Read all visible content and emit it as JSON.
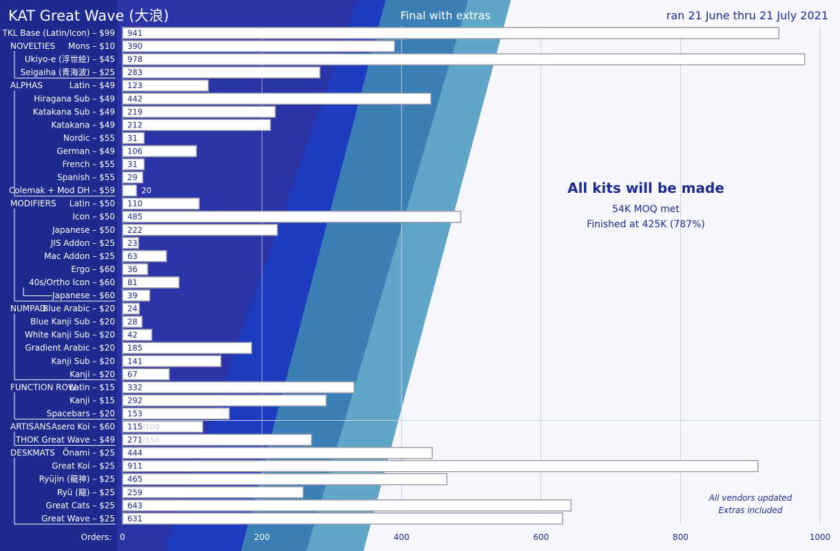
{
  "header": {
    "title": "KAT Great Wave (大浪)",
    "subtitle": "Final with extras",
    "date_range": "ran 21 June thru 21 July 2021"
  },
  "annotation": {
    "headline": "All kits will be made",
    "line1": "54K MOQ met",
    "line2": "Finished at 425K (787%)"
  },
  "footnote": {
    "line1": "All vendors updated",
    "line2": "Extras included"
  },
  "axis": {
    "label": "Orders:"
  },
  "colors": {
    "bg_dark": "#1f2a8f",
    "band1": "#2a34a6",
    "band2": "#1e3cc0",
    "band3": "#3a80b6",
    "band4": "#5fa6c8",
    "light_bg": "#f7f8fd",
    "bar_fill": "#ffffff",
    "bar_stroke": "#9a9cab",
    "text_dark": "#1c2a8f"
  },
  "chart_data": {
    "type": "bar",
    "orientation": "horizontal",
    "xlim": [
      0,
      1000
    ],
    "ticks": [
      0,
      200,
      400,
      600,
      800,
      1000
    ],
    "grid": true,
    "rows": [
      {
        "group": "",
        "label": "TKL Base (Latin/Icon) – $99",
        "value": 941
      },
      {
        "group": "NOVELTIES",
        "label": "Mons – $10",
        "value": 390
      },
      {
        "group": "",
        "label": "Ukiyo-e (浮世絵) – $45",
        "value": 978
      },
      {
        "group": "",
        "label": "Seigaiha (青海波) – $25",
        "value": 283
      },
      {
        "group": "ALPHAS",
        "label": "Latin – $49",
        "value": 123
      },
      {
        "group": "",
        "label": "Hiragana Sub – $49",
        "value": 442
      },
      {
        "group": "",
        "label": "Katakana Sub – $49",
        "value": 219
      },
      {
        "group": "",
        "label": "Katakana – $49",
        "value": 212
      },
      {
        "group": "",
        "label": "Nordic – $55",
        "value": 31
      },
      {
        "group": "",
        "label": "German – $49",
        "value": 106
      },
      {
        "group": "",
        "label": "French – $55",
        "value": 31
      },
      {
        "group": "",
        "label": "Spanish – $55",
        "value": 29
      },
      {
        "group": "",
        "label": "Colemak + Mod DH – $59",
        "value": 20
      },
      {
        "group": "MODIFIERS",
        "label": "Latin – $50",
        "value": 110
      },
      {
        "group": "",
        "label": "Icon – $50",
        "value": 485
      },
      {
        "group": "",
        "label": "Japanese – $50",
        "value": 222
      },
      {
        "group": "",
        "label": "JIS Addon – $25",
        "value": 23
      },
      {
        "group": "",
        "label": "Mac Addon – $25",
        "value": 63
      },
      {
        "group": "",
        "label": "Ergo – $60",
        "value": 36
      },
      {
        "group": "",
        "label": "40s/Ortho  Icon – $60",
        "value": 81
      },
      {
        "group": "",
        "label": "Japanese – $60",
        "value": 39
      },
      {
        "group": "NUMPAD",
        "label": "Blue Arabic – $20",
        "value": 24
      },
      {
        "group": "",
        "label": "Blue Kanji Sub – $20",
        "value": 28
      },
      {
        "group": "",
        "label": "White Kanji Sub – $20",
        "value": 42
      },
      {
        "group": "",
        "label": "Gradient  Arabic – $20",
        "value": 185
      },
      {
        "group": "",
        "label": "Kanji Sub – $20",
        "value": 141
      },
      {
        "group": "",
        "label": "Kanji – $20",
        "value": 67
      },
      {
        "group": "FUNCTION ROW",
        "label": "Latin – $15",
        "value": 332
      },
      {
        "group": "",
        "label": "Kanji – $15",
        "value": 292
      },
      {
        "group": "",
        "label": "Spacebars – $20",
        "value": 153
      },
      {
        "group": "ARTISANS",
        "label": "Asero Koi – $60",
        "value": 115,
        "cap": "/100"
      },
      {
        "group": "",
        "label": "THOK Great Wave – $49",
        "value": 271,
        "cap": "/150"
      },
      {
        "group": "DESKMATS",
        "label": "Ōnami – $25",
        "value": 444
      },
      {
        "group": "",
        "label": "Great Koi – $25",
        "value": 911
      },
      {
        "group": "",
        "label": "Ryūjin (龍神) – $25",
        "value": 465
      },
      {
        "group": "",
        "label": "Ryū (龍) – $25",
        "value": 259
      },
      {
        "group": "",
        "label": "Great Cats – $25",
        "value": 643
      },
      {
        "group": "",
        "label": "Great Wave – $25",
        "value": 631
      }
    ]
  }
}
